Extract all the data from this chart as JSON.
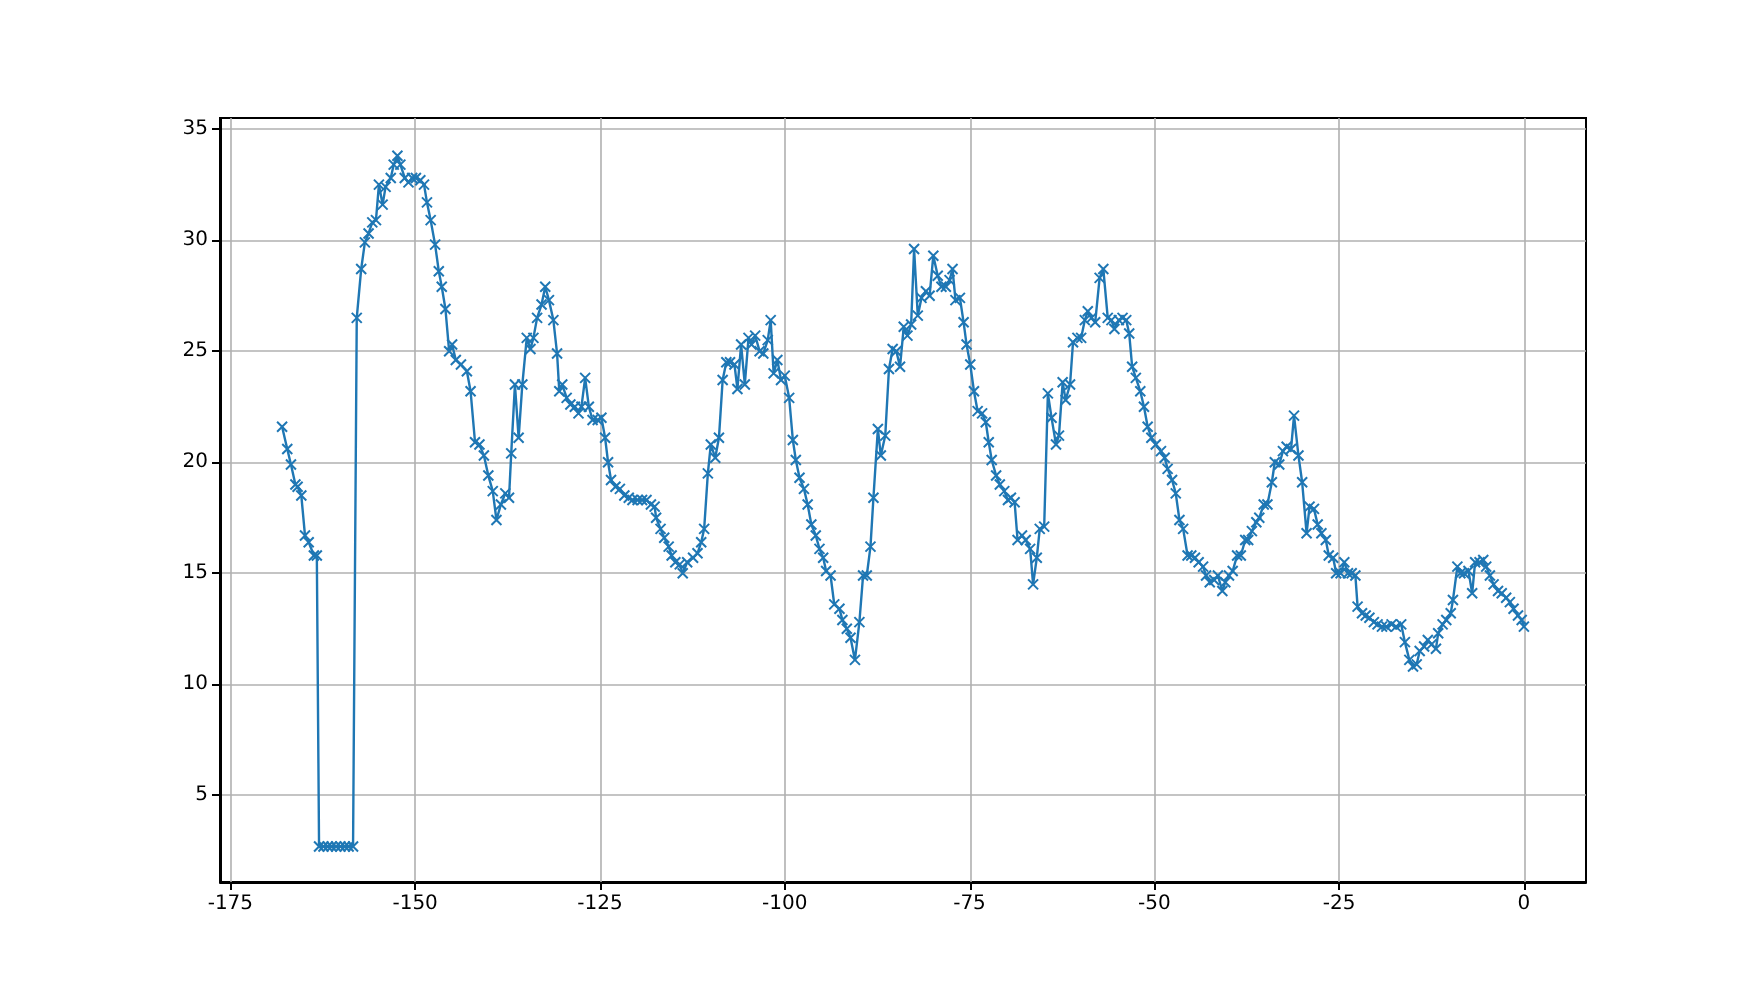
{
  "chart_data": {
    "type": "line",
    "color": "#1f77b4",
    "marker": "cross",
    "line_style": "solid",
    "grid": true,
    "xlim": [
      -176.4,
      8.4
    ],
    "ylim": [
      1.1,
      35.5
    ],
    "xticks": [
      -175,
      -150,
      -125,
      -100,
      -75,
      -50,
      -25,
      0
    ],
    "yticks": [
      5,
      10,
      15,
      20,
      25,
      30,
      35
    ],
    "x": [
      -168.0,
      -167.3,
      -166.8,
      -166.2,
      -165.9,
      -165.4,
      -164.9,
      -164.4,
      -163.7,
      -163.3,
      -163.0,
      -162.4,
      -161.8,
      -161.3,
      -160.7,
      -160.1,
      -159.5,
      -159.0,
      -158.4,
      -157.9,
      -157.3,
      -156.8,
      -156.3,
      -155.8,
      -155.3,
      -154.9,
      -154.4,
      -154.0,
      -153.3,
      -152.9,
      -152.4,
      -152.0,
      -151.4,
      -150.9,
      -150.4,
      -149.9,
      -149.3,
      -148.8,
      -148.4,
      -147.9,
      -147.3,
      -146.8,
      -146.4,
      -145.9,
      -145.4,
      -145.0,
      -144.5,
      -143.8,
      -143.0,
      -142.5,
      -141.9,
      -141.3,
      -140.7,
      -140.1,
      -139.5,
      -139.0,
      -138.4,
      -137.8,
      -137.3,
      -137.0,
      -136.5,
      -136.0,
      -135.5,
      -134.9,
      -134.4,
      -134.0,
      -133.5,
      -132.9,
      -132.4,
      -131.9,
      -131.3,
      -130.8,
      -130.5,
      -130.1,
      -129.5,
      -129.0,
      -128.4,
      -127.9,
      -127.5,
      -127.0,
      -126.5,
      -126.0,
      -125.3,
      -124.8,
      -124.3,
      -123.9,
      -123.5,
      -122.9,
      -122.3,
      -121.7,
      -121.1,
      -120.6,
      -119.9,
      -119.3,
      -118.7,
      -118.1,
      -117.6,
      -117.4,
      -116.8,
      -116.3,
      -115.7,
      -115.3,
      -114.8,
      -114.2,
      -113.8,
      -113.2,
      -112.4,
      -111.8,
      -111.3,
      -110.9,
      -110.4,
      -110.0,
      -109.4,
      -108.9,
      -108.4,
      -107.9,
      -107.4,
      -106.8,
      -106.4,
      -105.9,
      -105.4,
      -104.9,
      -104.5,
      -104.0,
      -103.4,
      -102.9,
      -102.3,
      -101.9,
      -101.5,
      -101.0,
      -100.5,
      -100.0,
      -99.4,
      -98.9,
      -98.5,
      -98.0,
      -97.4,
      -96.9,
      -96.4,
      -95.8,
      -95.3,
      -94.8,
      -94.4,
      -93.8,
      -93.3,
      -92.6,
      -92.2,
      -91.6,
      -91.1,
      -90.5,
      -89.9,
      -89.4,
      -88.9,
      -88.4,
      -88.0,
      -87.4,
      -87.0,
      -86.4,
      -85.9,
      -85.4,
      -84.9,
      -84.4,
      -83.9,
      -83.4,
      -82.9,
      -82.5,
      -82.0,
      -81.5,
      -80.9,
      -80.4,
      -79.9,
      -79.3,
      -78.8,
      -78.2,
      -77.7,
      -77.3,
      -76.9,
      -76.3,
      -75.8,
      -75.4,
      -74.9,
      -74.4,
      -73.9,
      -73.3,
      -72.8,
      -72.4,
      -72.0,
      -71.4,
      -70.9,
      -70.3,
      -69.8,
      -69.4,
      -68.9,
      -68.5,
      -67.9,
      -67.4,
      -66.8,
      -66.4,
      -65.9,
      -65.5,
      -64.9,
      -64.4,
      -63.9,
      -63.3,
      -62.9,
      -62.4,
      -62.0,
      -61.4,
      -61.0,
      -60.4,
      -59.9,
      -59.4,
      -59.0,
      -58.5,
      -58.0,
      -57.4,
      -56.9,
      -56.3,
      -55.8,
      -55.4,
      -54.8,
      -54.3,
      -53.8,
      -53.4,
      -53.0,
      -52.5,
      -51.9,
      -51.4,
      -50.9,
      -50.4,
      -49.8,
      -49.1,
      -48.6,
      -48.2,
      -47.6,
      -47.1,
      -46.6,
      -46.1,
      -45.5,
      -45.0,
      -44.5,
      -44.0,
      -43.4,
      -43.0,
      -42.5,
      -41.9,
      -41.4,
      -40.8,
      -40.4,
      -39.9,
      -39.4,
      -38.8,
      -38.3,
      -37.7,
      -37.3,
      -36.8,
      -36.2,
      -35.8,
      -35.2,
      -34.7,
      -34.1,
      -33.7,
      -33.1,
      -32.6,
      -32.1,
      -31.5,
      -31.1,
      -30.5,
      -30.0,
      -29.4,
      -29.0,
      -28.4,
      -27.9,
      -27.4,
      -26.8,
      -26.4,
      -25.8,
      -25.4,
      -24.8,
      -24.3,
      -23.8,
      -23.3,
      -22.8,
      -22.5,
      -21.9,
      -21.4,
      -20.9,
      -20.3,
      -19.8,
      -19.2,
      -18.6,
      -17.9,
      -17.3,
      -16.6,
      -16.1,
      -15.5,
      -15.0,
      -14.5,
      -14.1,
      -13.5,
      -13.0,
      -12.5,
      -11.9,
      -11.6,
      -11.0,
      -10.5,
      -9.9,
      -9.6,
      -9.0,
      -8.6,
      -8.1,
      -7.5,
      -7.0,
      -6.6,
      -6.0,
      -5.5,
      -5.1,
      -4.6,
      -4.1,
      -3.5,
      -3.0,
      -2.4,
      -1.9,
      -1.4,
      -0.8,
      -0.3,
      0
    ],
    "values": [
      21.6,
      20.6,
      19.9,
      19.0,
      18.9,
      18.5,
      16.7,
      16.4,
      15.8,
      15.8,
      2.7,
      2.7,
      2.7,
      2.7,
      2.7,
      2.7,
      2.7,
      2.7,
      2.7,
      26.5,
      28.7,
      29.9,
      30.3,
      30.8,
      30.9,
      32.5,
      31.6,
      32.4,
      32.8,
      33.4,
      33.8,
      33.4,
      32.8,
      32.6,
      32.8,
      32.8,
      32.7,
      32.5,
      31.7,
      30.9,
      29.8,
      28.6,
      27.9,
      26.9,
      25.0,
      25.3,
      24.6,
      24.4,
      24.1,
      23.2,
      20.9,
      20.8,
      20.3,
      19.4,
      18.7,
      17.4,
      18.1,
      18.6,
      18.4,
      20.4,
      23.5,
      21.1,
      23.5,
      25.6,
      25.1,
      25.6,
      26.5,
      27.1,
      27.9,
      27.3,
      26.4,
      24.9,
      23.2,
      23.5,
      22.9,
      22.6,
      22.5,
      22.2,
      22.5,
      23.8,
      22.5,
      21.9,
      21.9,
      22.0,
      21.1,
      20.0,
      19.2,
      18.9,
      18.8,
      18.5,
      18.4,
      18.3,
      18.3,
      18.3,
      18.3,
      18.1,
      18.0,
      17.5,
      17.0,
      16.6,
      16.2,
      15.8,
      15.5,
      15.4,
      15.0,
      15.5,
      15.7,
      15.9,
      16.4,
      17.0,
      19.5,
      20.8,
      20.2,
      21.1,
      23.7,
      24.5,
      24.5,
      24.4,
      23.3,
      25.3,
      23.5,
      25.6,
      25.3,
      25.7,
      25.0,
      24.9,
      25.5,
      26.4,
      24.0,
      24.6,
      23.7,
      23.9,
      22.9,
      21.0,
      20.1,
      19.3,
      18.8,
      18.1,
      17.2,
      16.7,
      16.1,
      15.7,
      15.1,
      14.9,
      13.6,
      13.4,
      12.9,
      12.5,
      12.1,
      11.1,
      12.8,
      14.9,
      14.9,
      16.2,
      18.4,
      21.5,
      20.3,
      21.2,
      24.2,
      25.1,
      25.0,
      24.3,
      26.1,
      25.7,
      26.2,
      29.6,
      26.6,
      27.4,
      27.7,
      27.5,
      29.3,
      28.4,
      27.9,
      27.9,
      28.2,
      28.7,
      27.3,
      27.4,
      26.3,
      25.3,
      24.4,
      23.2,
      22.3,
      22.2,
      21.8,
      20.9,
      20.1,
      19.4,
      19.0,
      18.7,
      18.3,
      18.4,
      18.2,
      16.5,
      16.7,
      16.5,
      16.1,
      14.5,
      15.7,
      17.0,
      17.1,
      23.1,
      22.0,
      20.8,
      21.2,
      23.6,
      22.8,
      23.5,
      25.4,
      25.6,
      25.6,
      26.4,
      26.8,
      26.5,
      26.3,
      28.3,
      28.7,
      26.5,
      26.4,
      26.0,
      26.4,
      26.5,
      26.4,
      25.8,
      24.3,
      23.8,
      23.2,
      22.5,
      21.6,
      21.1,
      20.8,
      20.5,
      20.2,
      19.7,
      19.2,
      18.6,
      17.4,
      17.0,
      15.8,
      15.8,
      15.7,
      15.5,
      15.3,
      14.9,
      14.6,
      14.7,
      14.9,
      14.2,
      14.6,
      14.9,
      15.1,
      15.8,
      15.8,
      16.5,
      16.5,
      16.9,
      17.3,
      17.5,
      18.1,
      18.1,
      19.1,
      20.0,
      19.9,
      20.5,
      20.7,
      20.6,
      22.1,
      20.3,
      19.1,
      16.8,
      18.0,
      17.9,
      17.2,
      16.8,
      16.5,
      15.8,
      15.7,
      15.0,
      15.0,
      15.5,
      15.0,
      15.0,
      14.9,
      13.5,
      13.2,
      13.1,
      13.0,
      12.8,
      12.7,
      12.6,
      12.6,
      12.7,
      12.6,
      12.7,
      11.9,
      11.1,
      10.8,
      10.9,
      11.5,
      11.7,
      12.0,
      11.8,
      11.6,
      12.3,
      12.7,
      12.9,
      13.2,
      13.8,
      15.3,
      15.0,
      15.0,
      15.1,
      14.1,
      15.5,
      15.5,
      15.6,
      15.3,
      14.9,
      14.5,
      14.2,
      14.1,
      13.9,
      13.7,
      13.4,
      13.1,
      12.9,
      12.6
    ]
  }
}
